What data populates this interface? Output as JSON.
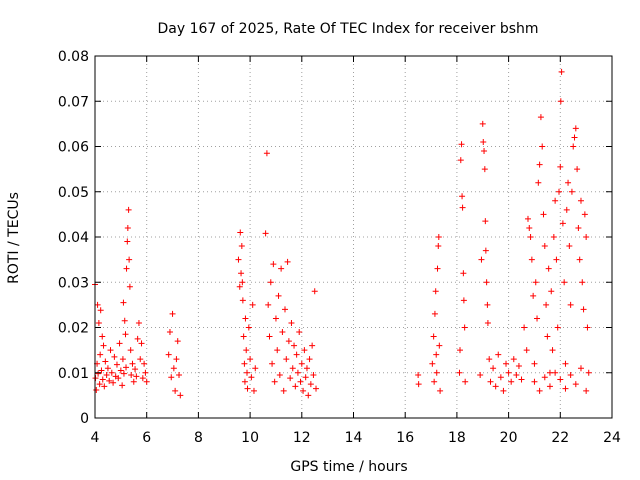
{
  "chart_data": {
    "type": "scatter",
    "title": "Day 167 of 2025, Rate Of TEC Index for receiver bshm",
    "xlabel": "GPS time / hours",
    "ylabel": "ROTI / TECUs",
    "xlim": [
      4,
      24
    ],
    "ylim": [
      0,
      0.08
    ],
    "x_ticks": [
      4,
      6,
      8,
      10,
      12,
      14,
      16,
      18,
      20,
      22,
      24
    ],
    "y_ticks": [
      0,
      0.01,
      0.02,
      0.03,
      0.04,
      0.05,
      0.06,
      0.07,
      0.08
    ],
    "x_tick_labels": [
      "4",
      "6",
      "8",
      "10",
      "12",
      "14",
      "16",
      "18",
      "20",
      "22",
      "24"
    ],
    "y_tick_labels": [
      "0",
      "0.01",
      "0.02",
      "0.03",
      "0.04",
      "0.05",
      "0.06",
      "0.07",
      "0.08"
    ],
    "grid": true,
    "marker": "+",
    "marker_color": "#ff0000",
    "series": [
      {
        "points": [
          [
            4.0,
            0.0295
          ],
          [
            4.02,
            0.0088
          ],
          [
            4.05,
            0.0062
          ],
          [
            4.08,
            0.012
          ],
          [
            4.1,
            0.025
          ],
          [
            4.12,
            0.0098
          ],
          [
            4.15,
            0.021
          ],
          [
            4.18,
            0.0075
          ],
          [
            4.2,
            0.014
          ],
          [
            4.22,
            0.0238
          ],
          [
            4.25,
            0.0105
          ],
          [
            4.28,
            0.018
          ],
          [
            4.3,
            0.0085
          ],
          [
            4.33,
            0.016
          ],
          [
            4.36,
            0.007
          ],
          [
            4.4,
            0.0125
          ],
          [
            4.45,
            0.0095
          ],
          [
            4.5,
            0.011
          ],
          [
            4.55,
            0.0082
          ],
          [
            4.6,
            0.015
          ],
          [
            4.65,
            0.01
          ],
          [
            4.7,
            0.0078
          ],
          [
            4.75,
            0.0135
          ],
          [
            4.8,
            0.0092
          ],
          [
            4.85,
            0.0118
          ],
          [
            4.9,
            0.0088
          ],
          [
            4.95,
            0.0165
          ],
          [
            5.0,
            0.0105
          ],
          [
            5.05,
            0.0072
          ],
          [
            5.08,
            0.013
          ],
          [
            5.1,
            0.0255
          ],
          [
            5.12,
            0.0098
          ],
          [
            5.15,
            0.0215
          ],
          [
            5.18,
            0.0185
          ],
          [
            5.2,
            0.0112
          ],
          [
            5.22,
            0.033
          ],
          [
            5.25,
            0.039
          ],
          [
            5.27,
            0.042
          ],
          [
            5.3,
            0.046
          ],
          [
            5.32,
            0.035
          ],
          [
            5.35,
            0.029
          ],
          [
            5.38,
            0.015
          ],
          [
            5.4,
            0.0095
          ],
          [
            5.45,
            0.012
          ],
          [
            5.5,
            0.008
          ],
          [
            5.55,
            0.0108
          ],
          [
            5.6,
            0.0092
          ],
          [
            5.65,
            0.0175
          ],
          [
            5.7,
            0.021
          ],
          [
            5.75,
            0.013
          ],
          [
            5.8,
            0.0165
          ],
          [
            5.85,
            0.0088
          ],
          [
            5.9,
            0.012
          ],
          [
            5.95,
            0.01
          ],
          [
            6.0,
            0.008
          ],
          [
            6.85,
            0.014
          ],
          [
            6.9,
            0.019
          ],
          [
            6.95,
            0.009
          ],
          [
            7.0,
            0.023
          ],
          [
            7.05,
            0.011
          ],
          [
            7.1,
            0.006
          ],
          [
            7.15,
            0.013
          ],
          [
            7.2,
            0.017
          ],
          [
            7.25,
            0.0095
          ],
          [
            7.3,
            0.005
          ],
          [
            9.55,
            0.035
          ],
          [
            9.6,
            0.029
          ],
          [
            9.62,
            0.041
          ],
          [
            9.65,
            0.032
          ],
          [
            9.68,
            0.038
          ],
          [
            9.7,
            0.03
          ],
          [
            9.72,
            0.026
          ],
          [
            9.75,
            0.018
          ],
          [
            9.78,
            0.012
          ],
          [
            9.8,
            0.008
          ],
          [
            9.82,
            0.022
          ],
          [
            9.85,
            0.015
          ],
          [
            9.88,
            0.01
          ],
          [
            9.9,
            0.0065
          ],
          [
            9.95,
            0.02
          ],
          [
            10.0,
            0.013
          ],
          [
            10.05,
            0.009
          ],
          [
            10.1,
            0.025
          ],
          [
            10.15,
            0.006
          ],
          [
            10.2,
            0.011
          ],
          [
            10.6,
            0.0408
          ],
          [
            10.65,
            0.0585
          ],
          [
            10.7,
            0.025
          ],
          [
            10.75,
            0.018
          ],
          [
            10.8,
            0.03
          ],
          [
            10.85,
            0.012
          ],
          [
            10.9,
            0.034
          ],
          [
            10.95,
            0.008
          ],
          [
            11.0,
            0.022
          ],
          [
            11.05,
            0.015
          ],
          [
            11.1,
            0.027
          ],
          [
            11.15,
            0.0095
          ],
          [
            11.2,
            0.033
          ],
          [
            11.25,
            0.019
          ],
          [
            11.3,
            0.006
          ],
          [
            11.35,
            0.024
          ],
          [
            11.4,
            0.013
          ],
          [
            11.45,
            0.0345
          ],
          [
            11.5,
            0.017
          ],
          [
            11.55,
            0.0088
          ],
          [
            11.6,
            0.021
          ],
          [
            11.65,
            0.011
          ],
          [
            11.7,
            0.016
          ],
          [
            11.75,
            0.007
          ],
          [
            11.8,
            0.014
          ],
          [
            11.85,
            0.01
          ],
          [
            11.9,
            0.019
          ],
          [
            11.95,
            0.008
          ],
          [
            12.0,
            0.012
          ],
          [
            12.05,
            0.006
          ],
          [
            12.1,
            0.015
          ],
          [
            12.15,
            0.009
          ],
          [
            12.2,
            0.011
          ],
          [
            12.25,
            0.005
          ],
          [
            12.3,
            0.013
          ],
          [
            12.35,
            0.0075
          ],
          [
            12.4,
            0.016
          ],
          [
            12.45,
            0.0095
          ],
          [
            12.5,
            0.028
          ],
          [
            12.55,
            0.0065
          ],
          [
            16.5,
            0.0095
          ],
          [
            16.52,
            0.0075
          ],
          [
            17.05,
            0.012
          ],
          [
            17.1,
            0.018
          ],
          [
            17.12,
            0.008
          ],
          [
            17.15,
            0.023
          ],
          [
            17.18,
            0.028
          ],
          [
            17.2,
            0.014
          ],
          [
            17.22,
            0.01
          ],
          [
            17.25,
            0.033
          ],
          [
            17.28,
            0.038
          ],
          [
            17.3,
            0.04
          ],
          [
            17.32,
            0.016
          ],
          [
            17.35,
            0.006
          ],
          [
            18.1,
            0.01
          ],
          [
            18.12,
            0.015
          ],
          [
            18.15,
            0.057
          ],
          [
            18.18,
            0.0605
          ],
          [
            18.2,
            0.049
          ],
          [
            18.22,
            0.0465
          ],
          [
            18.25,
            0.032
          ],
          [
            18.27,
            0.026
          ],
          [
            18.3,
            0.02
          ],
          [
            18.32,
            0.008
          ],
          [
            18.9,
            0.0095
          ],
          [
            18.95,
            0.035
          ],
          [
            19.0,
            0.065
          ],
          [
            19.02,
            0.061
          ],
          [
            19.05,
            0.059
          ],
          [
            19.08,
            0.055
          ],
          [
            19.1,
            0.0435
          ],
          [
            19.12,
            0.037
          ],
          [
            19.15,
            0.03
          ],
          [
            19.18,
            0.025
          ],
          [
            19.2,
            0.021
          ],
          [
            19.25,
            0.013
          ],
          [
            19.3,
            0.008
          ],
          [
            19.4,
            0.011
          ],
          [
            19.5,
            0.007
          ],
          [
            19.6,
            0.014
          ],
          [
            19.7,
            0.009
          ],
          [
            19.8,
            0.006
          ],
          [
            19.9,
            0.012
          ],
          [
            20.0,
            0.01
          ],
          [
            20.1,
            0.008
          ],
          [
            20.2,
            0.013
          ],
          [
            20.3,
            0.0095
          ],
          [
            20.4,
            0.0115
          ],
          [
            20.5,
            0.0085
          ],
          [
            20.6,
            0.02
          ],
          [
            20.7,
            0.015
          ],
          [
            20.75,
            0.044
          ],
          [
            20.8,
            0.042
          ],
          [
            20.85,
            0.04
          ],
          [
            20.9,
            0.035
          ],
          [
            20.95,
            0.027
          ],
          [
            21.0,
            0.012
          ],
          [
            21.05,
            0.03
          ],
          [
            21.1,
            0.022
          ],
          [
            21.15,
            0.052
          ],
          [
            21.2,
            0.056
          ],
          [
            21.25,
            0.0665
          ],
          [
            21.3,
            0.06
          ],
          [
            21.35,
            0.045
          ],
          [
            21.4,
            0.038
          ],
          [
            21.45,
            0.025
          ],
          [
            21.5,
            0.018
          ],
          [
            21.55,
            0.033
          ],
          [
            21.6,
            0.01
          ],
          [
            21.65,
            0.028
          ],
          [
            21.7,
            0.015
          ],
          [
            21.75,
            0.04
          ],
          [
            21.8,
            0.048
          ],
          [
            21.85,
            0.035
          ],
          [
            21.9,
            0.02
          ],
          [
            21.95,
            0.05
          ],
          [
            22.0,
            0.0555
          ],
          [
            22.02,
            0.07
          ],
          [
            22.05,
            0.0765
          ],
          [
            22.1,
            0.043
          ],
          [
            22.15,
            0.03
          ],
          [
            22.2,
            0.012
          ],
          [
            22.25,
            0.046
          ],
          [
            22.3,
            0.052
          ],
          [
            22.35,
            0.038
          ],
          [
            22.4,
            0.025
          ],
          [
            22.45,
            0.05
          ],
          [
            22.5,
            0.06
          ],
          [
            22.55,
            0.062
          ],
          [
            22.6,
            0.064
          ],
          [
            22.65,
            0.055
          ],
          [
            22.7,
            0.042
          ],
          [
            22.75,
            0.035
          ],
          [
            22.8,
            0.048
          ],
          [
            22.85,
            0.03
          ],
          [
            22.9,
            0.024
          ],
          [
            22.95,
            0.045
          ],
          [
            23.0,
            0.04
          ],
          [
            23.05,
            0.02
          ],
          [
            23.1,
            0.01
          ],
          [
            21.0,
            0.008
          ],
          [
            21.2,
            0.006
          ],
          [
            21.4,
            0.009
          ],
          [
            21.6,
            0.007
          ],
          [
            21.8,
            0.01
          ],
          [
            22.0,
            0.0085
          ],
          [
            22.2,
            0.0065
          ],
          [
            22.4,
            0.0095
          ],
          [
            22.6,
            0.0075
          ],
          [
            22.8,
            0.011
          ],
          [
            23.0,
            0.006
          ]
        ]
      }
    ]
  }
}
